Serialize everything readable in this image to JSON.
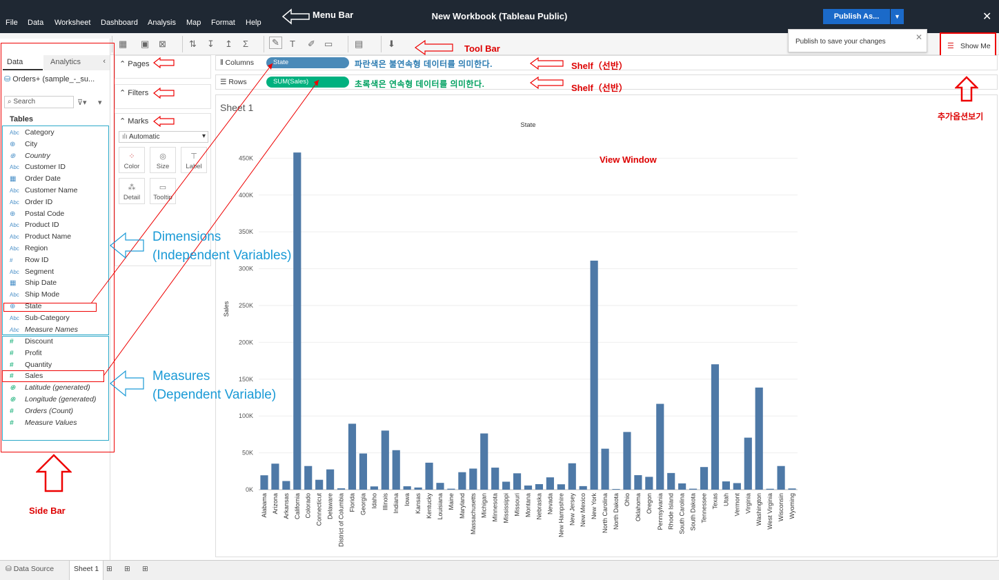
{
  "menubar": {
    "items": [
      "File",
      "Data",
      "Worksheet",
      "Dashboard",
      "Analysis",
      "Map",
      "Format",
      "Help"
    ],
    "title": "New Workbook (Tableau Public)",
    "publish": "Publish As...",
    "publish_popup": "Publish to save your changes"
  },
  "showme": {
    "label": "Show Me"
  },
  "sidebar": {
    "tab_data": "Data",
    "tab_analytics": "Analytics",
    "datasource": "Orders+ (sample_-_su...",
    "search_placeholder": "Search",
    "tables_label": "Tables",
    "dimensions": [
      "Category",
      "City",
      "Country",
      "Customer ID",
      "Order Date",
      "Customer Name",
      "Order ID",
      "Postal Code",
      "Product ID",
      "Product Name",
      "Region",
      "Row ID",
      "Segment",
      "Ship Date",
      "Ship Mode",
      "State",
      "Sub-Category",
      "Measure Names"
    ],
    "dimension_icons": [
      "Abc",
      "globe",
      "globe",
      "Abc",
      "cal",
      "Abc",
      "Abc",
      "globe",
      "Abc",
      "Abc",
      "Abc",
      "#",
      "Abc",
      "cal",
      "Abc",
      "globe",
      "Abc",
      "Abc"
    ],
    "measures": [
      "Discount",
      "Profit",
      "Quantity",
      "Sales",
      "Latitude (generated)",
      "Longitude (generated)",
      "Orders (Count)",
      "Measure Values"
    ],
    "measure_icons": [
      "#",
      "#",
      "#",
      "#",
      "globe",
      "globe",
      "#",
      "#"
    ]
  },
  "cards": {
    "pages": "Pages",
    "filters": "Filters",
    "marks": "Marks",
    "marks_type": "Automatic",
    "color": "Color",
    "size": "Size",
    "label": "Label",
    "detail": "Detail",
    "tooltip": "Tooltip"
  },
  "shelves": {
    "columns_label": "Columns",
    "rows_label": "Rows",
    "columns_pill": "State",
    "rows_pill": "SUM(Sales)"
  },
  "colors": {
    "menubar": "#1f2833",
    "publish": "#1b6ac9",
    "dimension_pill": "#4a8ab8",
    "measure_pill": "#00b17f",
    "bar": "#4e79a7",
    "annotation_red": "#dd0000",
    "annotation_blue": "#1a9ad6"
  },
  "annotations": {
    "menubar": "Menu Bar",
    "toolbar": "Tool Bar",
    "shelf1": "Shelf（선반）",
    "shelf2": "Shelf（선반）",
    "blue_desc": "파란색은 불연속형 데이터를 의미한다.",
    "green_desc": "초록색은 연속형 데이터를 의미한다.",
    "view_window": "View Window",
    "showme": "추가옵션보기",
    "sidebar": "Side Bar",
    "dimensions_1": "Dimensions",
    "dimensions_2": "(Independent Variables)",
    "measures_1": "Measures",
    "measures_2": "(Dependent Variable)"
  },
  "sheet": {
    "title": "Sheet 1"
  },
  "chart_data": {
    "type": "bar",
    "title": "State",
    "xlabel": "",
    "ylabel": "Sales",
    "ylim": [
      0,
      470000
    ],
    "yticks": [
      "0K",
      "50K",
      "100K",
      "150K",
      "200K",
      "250K",
      "300K",
      "350K",
      "400K",
      "450K"
    ],
    "categories": [
      "Alabama",
      "Arizona",
      "Arkansas",
      "California",
      "Colorado",
      "Connecticut",
      "Delaware",
      "District of Columbia",
      "Florida",
      "Georgia",
      "Idaho",
      "Illinois",
      "Indiana",
      "Iowa",
      "Kansas",
      "Kentucky",
      "Louisiana",
      "Maine",
      "Maryland",
      "Massachusetts",
      "Michigan",
      "Minnesota",
      "Mississippi",
      "Missouri",
      "Montana",
      "Nebraska",
      "Nevada",
      "New Hampshire",
      "New Jersey",
      "New Mexico",
      "New York",
      "North Carolina",
      "North Dakota",
      "Ohio",
      "Oklahoma",
      "Oregon",
      "Pennsylvania",
      "Rhode Island",
      "South Carolina",
      "South Dakota",
      "Tennessee",
      "Texas",
      "Utah",
      "Vermont",
      "Virginia",
      "Washington",
      "West Virginia",
      "Wisconsin",
      "Wyoming"
    ],
    "values": [
      19500,
      35300,
      11700,
      457700,
      32100,
      13400,
      27500,
      1800,
      89500,
      49100,
      4400,
      80200,
      53600,
      4600,
      2900,
      36600,
      9200,
      1300,
      23700,
      28600,
      76300,
      29900,
      10800,
      22200,
      5600,
      7500,
      16700,
      7300,
      35800,
      4800,
      310900,
      55600,
      900,
      78300,
      19700,
      17400,
      116500,
      22600,
      8500,
      1300,
      30700,
      170200,
      11200,
      8900,
      70600,
      138600,
      1200,
      32100,
      1600
    ]
  }
}
